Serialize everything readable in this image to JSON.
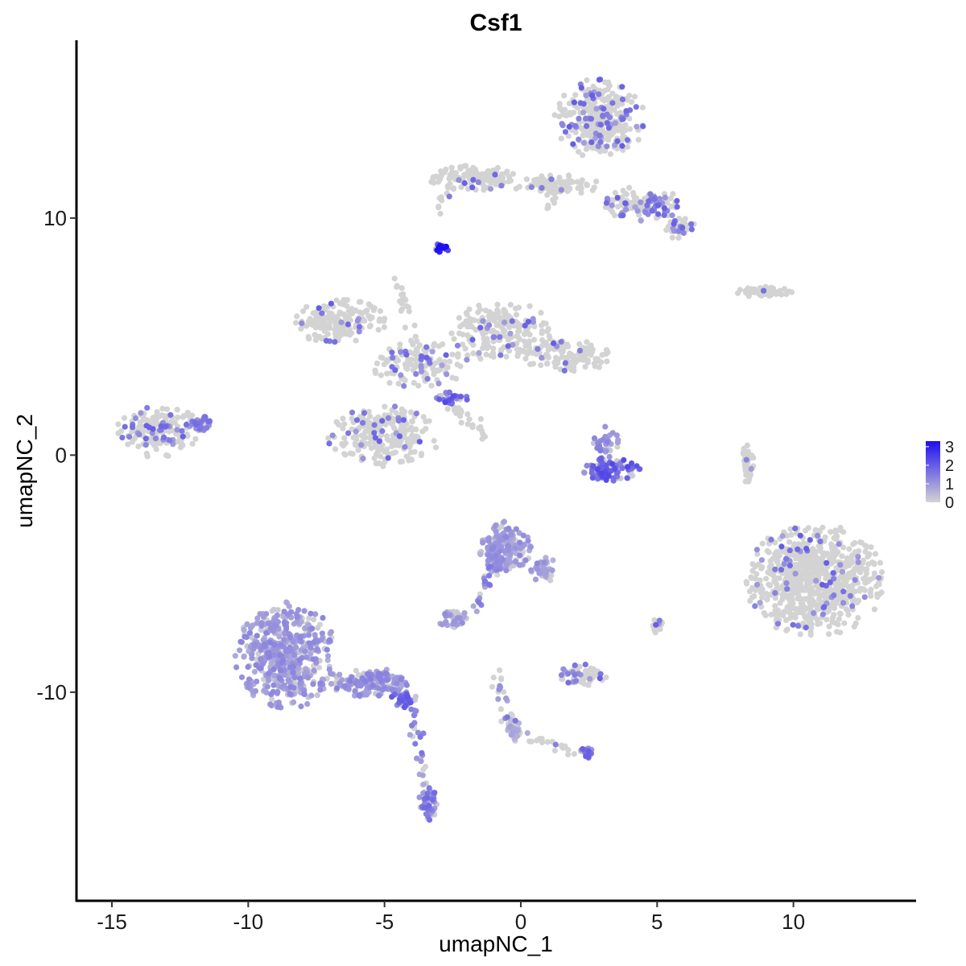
{
  "chart_data": {
    "type": "scatter",
    "title": "Csf1",
    "xlabel": "umapNC_1",
    "ylabel": "umapNC_2",
    "xlim": [
      -16.3,
      14.5
    ],
    "ylim": [
      -18.8,
      17.5
    ],
    "x_ticks": [
      -15,
      -10,
      -5,
      0,
      5,
      10
    ],
    "x_tick_labels": [
      "-15",
      "-10",
      "-5",
      "0",
      "5",
      "10"
    ],
    "y_ticks": [
      10,
      0,
      -10
    ],
    "y_tick_labels": [
      "10",
      "0",
      "-10"
    ],
    "grid": false,
    "color_scale": {
      "low_color": "#d3d3d3",
      "high_color": "#1f0ff0",
      "min": 0,
      "max": 3.3,
      "ticks": [
        0,
        1,
        2,
        3
      ],
      "tick_labels": [
        "0",
        "1",
        "2",
        "3"
      ],
      "legend_placement": "right"
    },
    "clusters": [
      {
        "id": "top-right-upper",
        "cx": 2.9,
        "cy": 14.2,
        "rx": 1.7,
        "ry": 1.7,
        "n": 330,
        "expr": 0.12
      },
      {
        "id": "top-arm-left",
        "cx": -1.8,
        "cy": 11.7,
        "rx": 1.6,
        "ry": 0.55,
        "n": 130,
        "expr": 0.05
      },
      {
        "id": "top-neck",
        "cx": 1.3,
        "cy": 11.4,
        "rx": 1.6,
        "ry": 0.45,
        "n": 90,
        "expr": 0.05
      },
      {
        "id": "top-arm-right",
        "cx": 4.5,
        "cy": 10.6,
        "rx": 1.5,
        "ry": 0.75,
        "n": 130,
        "expr": 0.2
      },
      {
        "id": "top-right-tip",
        "cx": 5.8,
        "cy": 9.6,
        "rx": 0.6,
        "ry": 0.5,
        "n": 40,
        "expr": 0.2
      },
      {
        "id": "hot-small",
        "cx": -2.9,
        "cy": 8.7,
        "rx": 0.25,
        "ry": 0.25,
        "n": 18,
        "expr": 2.9
      },
      {
        "id": "mid-left-lobe",
        "cx": -6.6,
        "cy": 5.6,
        "rx": 1.7,
        "ry": 1.0,
        "n": 170,
        "expr": 0.03
      },
      {
        "id": "mid-upper-right",
        "cx": -0.7,
        "cy": 5.2,
        "rx": 1.9,
        "ry": 1.3,
        "n": 200,
        "expr": 0.06
      },
      {
        "id": "mid-right-arm",
        "cx": 1.8,
        "cy": 4.2,
        "rx": 1.8,
        "ry": 0.65,
        "n": 110,
        "expr": 0.06
      },
      {
        "id": "mid-center",
        "cx": -3.6,
        "cy": 3.8,
        "rx": 1.9,
        "ry": 1.0,
        "n": 130,
        "expr": 0.1
      },
      {
        "id": "mid-lower-lobe",
        "cx": -5.0,
        "cy": 0.8,
        "rx": 2.1,
        "ry": 1.3,
        "n": 230,
        "expr": 0.05
      },
      {
        "id": "mid-junction-hot",
        "cx": -2.6,
        "cy": 2.4,
        "rx": 0.7,
        "ry": 0.25,
        "n": 30,
        "expr": 1.7
      },
      {
        "id": "left-island",
        "cx": -13.3,
        "cy": 1.0,
        "rx": 1.6,
        "ry": 1.1,
        "n": 170,
        "expr": 0.12
      },
      {
        "id": "left-island-tip",
        "cx": -11.8,
        "cy": 1.3,
        "rx": 0.6,
        "ry": 0.35,
        "n": 40,
        "expr": 1.3
      },
      {
        "id": "upper-right-small",
        "cx": 8.9,
        "cy": 6.9,
        "rx": 1.1,
        "ry": 0.22,
        "n": 60,
        "expr": 0.02
      },
      {
        "id": "ring-cluster",
        "cx": 3.3,
        "cy": -0.6,
        "rx": 1.1,
        "ry": 0.55,
        "n": 90,
        "expr": 1.7
      },
      {
        "id": "ring-top",
        "cx": 3.1,
        "cy": 0.6,
        "rx": 0.5,
        "ry": 0.6,
        "n": 35,
        "expr": 1.1
      },
      {
        "id": "thin-vertical",
        "cx": 8.3,
        "cy": -0.3,
        "rx": 0.25,
        "ry": 1.0,
        "n": 40,
        "expr": 0.01
      },
      {
        "id": "right-big",
        "cx": 10.8,
        "cy": -5.3,
        "rx": 2.6,
        "ry": 2.4,
        "n": 720,
        "expr": 0.04
      },
      {
        "id": "bottom-left-big",
        "cx": -8.6,
        "cy": -8.4,
        "rx": 1.9,
        "ry": 2.3,
        "n": 500,
        "expr": 0.95
      },
      {
        "id": "bottom-left-tail",
        "cx": -5.5,
        "cy": -9.6,
        "rx": 1.6,
        "ry": 0.6,
        "n": 160,
        "expr": 1.0
      },
      {
        "id": "bottom-left-tail-end",
        "cx": -4.3,
        "cy": -10.3,
        "rx": 0.5,
        "ry": 0.35,
        "n": 40,
        "expr": 1.5
      },
      {
        "id": "bottom-strand-tip",
        "cx": -3.4,
        "cy": -14.7,
        "rx": 0.35,
        "ry": 0.7,
        "n": 50,
        "expr": 1.3
      },
      {
        "id": "center-lower",
        "cx": -0.6,
        "cy": -3.9,
        "rx": 1.0,
        "ry": 1.1,
        "n": 170,
        "expr": 0.9
      },
      {
        "id": "center-lower-tail",
        "cx": 0.9,
        "cy": -4.9,
        "rx": 0.55,
        "ry": 0.6,
        "n": 40,
        "expr": 0.9
      },
      {
        "id": "center-left-small",
        "cx": -2.5,
        "cy": -6.9,
        "rx": 0.55,
        "ry": 0.4,
        "n": 40,
        "expr": 0.9
      },
      {
        "id": "center-right-small",
        "cx": 2.3,
        "cy": -9.3,
        "rx": 0.9,
        "ry": 0.5,
        "n": 55,
        "expr": 0.2
      },
      {
        "id": "center-bottom",
        "cx": -0.3,
        "cy": -11.6,
        "rx": 0.3,
        "ry": 0.5,
        "n": 30,
        "expr": 0.6
      },
      {
        "id": "center-bottom-right",
        "cx": 2.4,
        "cy": -12.6,
        "rx": 0.3,
        "ry": 0.25,
        "n": 20,
        "expr": 0.5
      },
      {
        "id": "small-right-mid",
        "cx": 5.0,
        "cy": -7.2,
        "rx": 0.3,
        "ry": 0.3,
        "n": 15,
        "expr": 0.3
      }
    ],
    "strands": [
      {
        "from": [
          -4.6,
          7.5
        ],
        "to": [
          -3.6,
          4.0
        ],
        "n": 30,
        "expr": 0.05
      },
      {
        "from": [
          -2.5,
          2.2
        ],
        "to": [
          -1.3,
          0.7
        ],
        "n": 25,
        "expr": 0.1
      },
      {
        "from": [
          -0.8,
          -4.4
        ],
        "to": [
          -1.8,
          -6.6
        ],
        "n": 25,
        "expr": 0.9
      },
      {
        "from": [
          -4.0,
          -10.3
        ],
        "to": [
          -3.5,
          -14.0
        ],
        "n": 30,
        "expr": 0.8
      },
      {
        "from": [
          -0.9,
          -9.3
        ],
        "to": [
          -0.3,
          -11.5
        ],
        "n": 25,
        "expr": 0.4
      },
      {
        "from": [
          -0.3,
          -11.7
        ],
        "to": [
          2.4,
          -12.6
        ],
        "n": 25,
        "expr": 0.4
      },
      {
        "from": [
          1.0,
          10.2
        ],
        "to": [
          1.3,
          11.4
        ],
        "n": 12,
        "expr": 0.05
      },
      {
        "from": [
          -3.0,
          10.2
        ],
        "to": [
          -2.7,
          11.3
        ],
        "n": 8,
        "expr": 0.3
      }
    ]
  }
}
